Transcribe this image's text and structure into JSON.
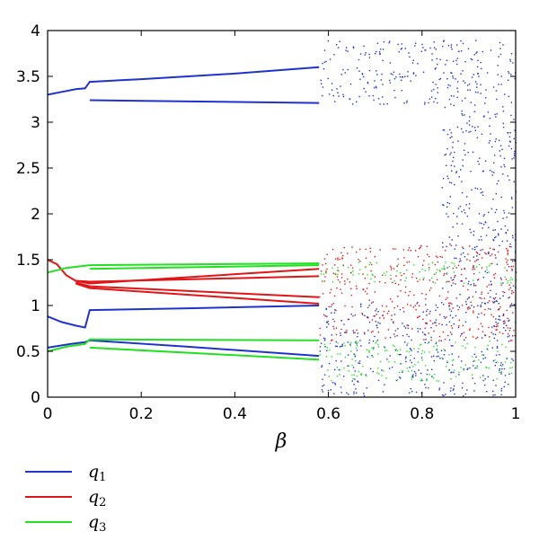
{
  "chart_data": {
    "type": "scatter",
    "title": "",
    "xlabel": "β",
    "ylabel": "",
    "xlim": [
      0,
      1
    ],
    "ylim": [
      0,
      4
    ],
    "xticks": [
      "0",
      "0.2",
      "0.4",
      "0.6",
      "0.8",
      "1"
    ],
    "yticks": [
      "0",
      "0.5",
      "1",
      "1.5",
      "2",
      "2.5",
      "3",
      "3.5",
      "4"
    ],
    "grid": false,
    "legend_placement": "below",
    "chaos_onset_beta": 0.58,
    "series": [
      {
        "name": "q1",
        "color": "#1f33cc",
        "branches": [
          [
            [
              0,
              3.3
            ],
            [
              0.03,
              3.33
            ],
            [
              0.06,
              3.36
            ],
            [
              0.08,
              3.37
            ],
            [
              0.09,
              3.44
            ],
            [
              0.2,
              3.47
            ],
            [
              0.4,
              3.53
            ],
            [
              0.58,
              3.6
            ]
          ],
          [
            [
              0.09,
              3.24
            ],
            [
              0.58,
              3.21
            ]
          ],
          [
            [
              0,
              0.88
            ],
            [
              0.03,
              0.82
            ],
            [
              0.06,
              0.78
            ],
            [
              0.08,
              0.76
            ],
            [
              0.09,
              0.95
            ],
            [
              0.3,
              0.97
            ],
            [
              0.58,
              1.0
            ]
          ],
          [
            [
              0,
              0.54
            ],
            [
              0.05,
              0.58
            ],
            [
              0.08,
              0.6
            ],
            [
              0.09,
              0.62
            ],
            [
              0.3,
              0.55
            ],
            [
              0.58,
              0.45
            ]
          ]
        ],
        "chaos_bands": [
          [
            0.58,
            1.0,
            3.2,
            3.9
          ],
          [
            0.58,
            1.0,
            0.02,
            1.05
          ],
          [
            0.84,
            1.0,
            1.0,
            3.2
          ]
        ]
      },
      {
        "name": "q2",
        "color": "#e01515",
        "branches": [
          [
            [
              0,
              1.5
            ],
            [
              0.02,
              1.45
            ],
            [
              0.04,
              1.33
            ],
            [
              0.06,
              1.27
            ],
            [
              0.09,
              1.24
            ],
            [
              0.58,
              1.4
            ]
          ],
          [
            [
              0.06,
              1.27
            ],
            [
              0.09,
              1.26
            ],
            [
              0.58,
              1.32
            ]
          ],
          [
            [
              0.06,
              1.25
            ],
            [
              0.09,
              1.21
            ],
            [
              0.58,
              1.09
            ]
          ],
          [
            [
              0.06,
              1.24
            ],
            [
              0.09,
              1.19
            ],
            [
              0.58,
              1.02
            ]
          ]
        ],
        "chaos_bands": [
          [
            0.58,
            1.0,
            0.62,
            1.66
          ]
        ]
      },
      {
        "name": "q3",
        "color": "#22e022",
        "branches": [
          [
            [
              0,
              1.36
            ],
            [
              0.04,
              1.41
            ],
            [
              0.09,
              1.44
            ],
            [
              0.58,
              1.46
            ]
          ],
          [
            [
              0.09,
              1.4
            ],
            [
              0.58,
              1.44
            ]
          ],
          [
            [
              0,
              0.5
            ],
            [
              0.04,
              0.55
            ],
            [
              0.08,
              0.58
            ],
            [
              0.09,
              0.63
            ],
            [
              0.58,
              0.62
            ]
          ],
          [
            [
              0.09,
              0.54
            ],
            [
              0.58,
              0.41
            ]
          ]
        ],
        "chaos_bands": [
          [
            0.58,
            1.0,
            1.25,
            1.48
          ],
          [
            0.58,
            1.0,
            0.18,
            0.62
          ]
        ]
      }
    ]
  },
  "legend": [
    {
      "symbol": "q",
      "sub": "1",
      "color": "#1f33cc"
    },
    {
      "symbol": "q",
      "sub": "2",
      "color": "#e01515"
    },
    {
      "symbol": "q",
      "sub": "3",
      "color": "#22e022"
    }
  ]
}
